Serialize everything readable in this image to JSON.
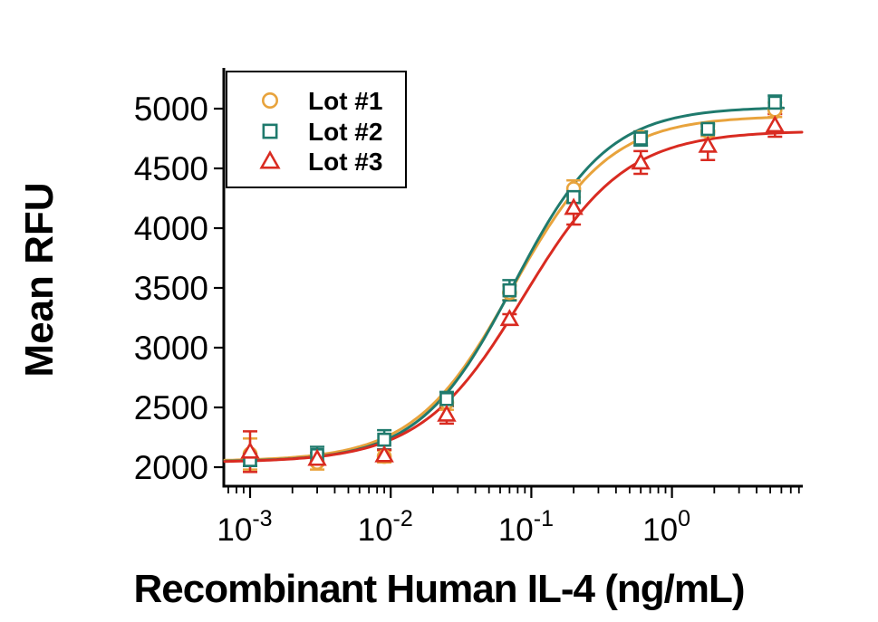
{
  "chart_data": {
    "type": "scatter",
    "title": "",
    "xlabel": "Recombinant Human IL-4 (ng/mL)",
    "ylabel": "Mean RFU",
    "x_scale": "log10",
    "xlim": [
      0.00065,
      8.5
    ],
    "ylim": [
      1900,
      5200
    ],
    "y_ticks": [
      2000,
      2500,
      3000,
      3500,
      4000,
      4500,
      5000
    ],
    "x_major_ticks": [
      {
        "value": 0.001,
        "base": "10",
        "exp": "-3"
      },
      {
        "value": 0.01,
        "base": "10",
        "exp": "-2"
      },
      {
        "value": 0.1,
        "base": "10",
        "exp": "-1"
      },
      {
        "value": 1,
        "base": "10",
        "exp": "0"
      }
    ],
    "x_minor_ticks": "log multiples 2-9 per decade",
    "grid": false,
    "legend_position": "upper left",
    "x": [
      0.001,
      0.003,
      0.009,
      0.025,
      0.07,
      0.2,
      0.6,
      1.8,
      5.4
    ],
    "series": [
      {
        "name": "Lot #1",
        "marker": "circle",
        "color": "#E8A33C",
        "values": [
          2110,
          2040,
          2090,
          2540,
          3460,
          4330,
          4760,
          4810,
          4990
        ],
        "errors": [
          130,
          60,
          50,
          60,
          60,
          70,
          50,
          40,
          60
        ],
        "fit": {
          "bottom": 2050,
          "top": 4940,
          "ec50": 0.073,
          "hill": 1.25
        },
        "curve_x_end": 5.6
      },
      {
        "name": "Lot #2",
        "marker": "square",
        "color": "#1F7A6D",
        "values": [
          2060,
          2100,
          2230,
          2570,
          3480,
          4260,
          4750,
          4830,
          5050
        ],
        "errors": [
          50,
          70,
          80,
          60,
          85,
          50,
          60,
          40,
          60
        ],
        "fit": {
          "bottom": 2045,
          "top": 5015,
          "ec50": 0.075,
          "hill": 1.3
        },
        "curve_x_end": 6.2
      },
      {
        "name": "Lot #3",
        "marker": "triangle",
        "color": "#D92B21",
        "values": [
          2130,
          2070,
          2100,
          2440,
          3240,
          4170,
          4550,
          4690,
          4860
        ],
        "errors": [
          170,
          50,
          45,
          75,
          40,
          140,
          95,
          120,
          95
        ],
        "fit": {
          "bottom": 2040,
          "top": 4815,
          "ec50": 0.088,
          "hill": 1.2
        },
        "curve_x_end": 8.4
      }
    ]
  }
}
